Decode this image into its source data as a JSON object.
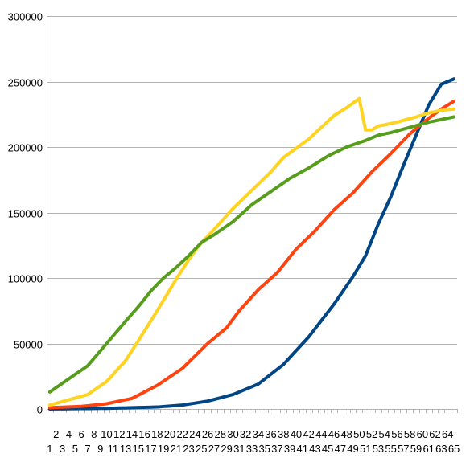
{
  "chart_data": {
    "type": "line",
    "title": "",
    "xlabel": "",
    "ylabel": "",
    "ylim": [
      0,
      300000
    ],
    "yticks": [
      0,
      50000,
      100000,
      150000,
      200000,
      250000,
      300000
    ],
    "grid": true,
    "legend": "none",
    "categories": [
      "1",
      "2",
      "3",
      "4",
      "5",
      "6",
      "7",
      "8",
      "9",
      "10",
      "11",
      "12",
      "13",
      "14",
      "15",
      "16",
      "17",
      "18",
      "19",
      "20",
      "21",
      "22",
      "23",
      "24",
      "25",
      "26",
      "27",
      "28",
      "29",
      "30",
      "31",
      "32",
      "33",
      "34",
      "35",
      "36",
      "37",
      "38",
      "39",
      "40",
      "41",
      "42",
      "43",
      "44",
      "45",
      "46",
      "47",
      "48",
      "49",
      "50",
      "51",
      "52",
      "53",
      "54",
      "55",
      "56",
      "57",
      "58",
      "59",
      "60",
      "61",
      "62",
      "63",
      "64",
      "65"
    ],
    "series": [
      {
        "color": "#004586",
        "keypoints": [
          [
            1,
            0
          ],
          [
            10,
            500
          ],
          [
            14,
            1000
          ],
          [
            18,
            1500
          ],
          [
            22,
            3000
          ],
          [
            26,
            6000
          ],
          [
            30,
            11000
          ],
          [
            34,
            19000
          ],
          [
            38,
            34000
          ],
          [
            42,
            55000
          ],
          [
            46,
            80000
          ],
          [
            49,
            101000
          ],
          [
            51,
            117000
          ],
          [
            53,
            141000
          ],
          [
            55,
            162000
          ],
          [
            57,
            186000
          ],
          [
            59,
            209000
          ],
          [
            61,
            232000
          ],
          [
            63,
            248000
          ],
          [
            65,
            252000
          ]
        ]
      },
      {
        "color": "#ff420e",
        "keypoints": [
          [
            1,
            1000
          ],
          [
            6,
            2000
          ],
          [
            10,
            4000
          ],
          [
            14,
            8000
          ],
          [
            18,
            18000
          ],
          [
            22,
            31000
          ],
          [
            26,
            50000
          ],
          [
            29,
            62000
          ],
          [
            31,
            75000
          ],
          [
            34,
            91000
          ],
          [
            37,
            104000
          ],
          [
            40,
            122000
          ],
          [
            43,
            136000
          ],
          [
            46,
            152000
          ],
          [
            49,
            165000
          ],
          [
            52,
            181000
          ],
          [
            55,
            195000
          ],
          [
            58,
            210000
          ],
          [
            61,
            222000
          ],
          [
            63,
            229000
          ],
          [
            65,
            235000
          ]
        ]
      },
      {
        "color": "#ffd320",
        "keypoints": [
          [
            1,
            3000
          ],
          [
            4,
            7000
          ],
          [
            7,
            11000
          ],
          [
            10,
            21000
          ],
          [
            13,
            37000
          ],
          [
            15,
            52000
          ],
          [
            18,
            75000
          ],
          [
            21,
            99000
          ],
          [
            23,
            114000
          ],
          [
            25,
            127000
          ],
          [
            27,
            137000
          ],
          [
            30,
            153000
          ],
          [
            33,
            167000
          ],
          [
            36,
            181000
          ],
          [
            38,
            192000
          ],
          [
            40,
            199000
          ],
          [
            42,
            206000
          ],
          [
            44,
            215000
          ],
          [
            46,
            224000
          ],
          [
            48,
            230000
          ],
          [
            50,
            237000
          ],
          [
            51,
            213000
          ],
          [
            52,
            213000
          ],
          [
            53,
            216000
          ],
          [
            56,
            219000
          ],
          [
            59,
            223000
          ],
          [
            61,
            226000
          ],
          [
            63,
            228000
          ],
          [
            65,
            229000
          ]
        ]
      },
      {
        "color": "#579d1c",
        "keypoints": [
          [
            1,
            13000
          ],
          [
            4,
            23000
          ],
          [
            7,
            33000
          ],
          [
            10,
            50000
          ],
          [
            13,
            67000
          ],
          [
            15,
            78000
          ],
          [
            17,
            90000
          ],
          [
            19,
            100000
          ],
          [
            21,
            108000
          ],
          [
            23,
            117000
          ],
          [
            25,
            127000
          ],
          [
            27,
            133000
          ],
          [
            30,
            143000
          ],
          [
            33,
            156000
          ],
          [
            36,
            166000
          ],
          [
            39,
            176000
          ],
          [
            42,
            184000
          ],
          [
            45,
            193000
          ],
          [
            48,
            200000
          ],
          [
            51,
            205000
          ],
          [
            53,
            209000
          ],
          [
            55,
            211000
          ],
          [
            58,
            215000
          ],
          [
            61,
            219000
          ],
          [
            63,
            221000
          ],
          [
            65,
            223000
          ]
        ]
      }
    ]
  }
}
